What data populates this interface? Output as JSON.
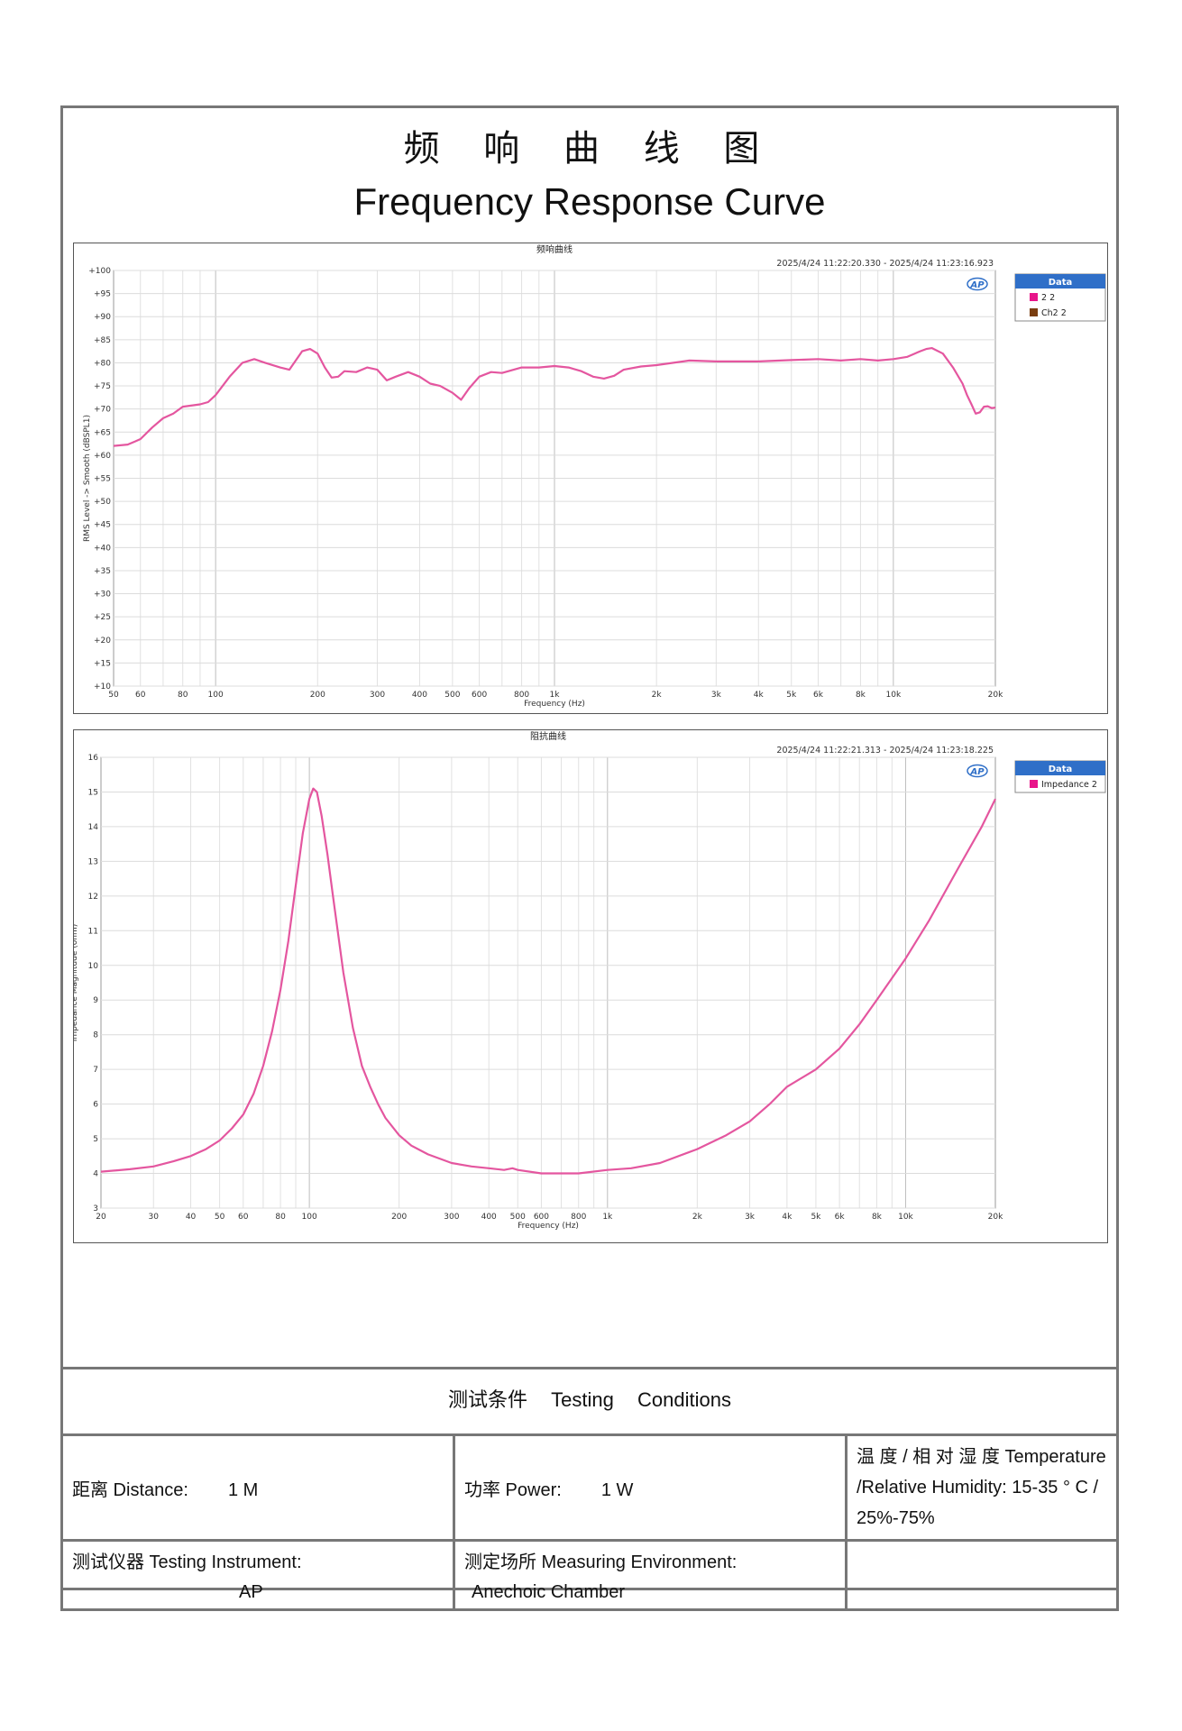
{
  "header": {
    "title_cn": "频 响 曲 线 图",
    "title_en": "Frequency Response Curve"
  },
  "colors": {
    "curve": "#e4569f",
    "legend_ch2": "#7a3e10",
    "legend_header": "#2f6fc8"
  },
  "chart_data": [
    {
      "type": "line",
      "title": "频响曲线",
      "timestamp": "2025/4/24 11:22:20.330 - 2025/4/24 11:23:16.923",
      "xlabel": "Frequency (Hz)",
      "ylabel": "RMS Level -> Smooth (dBSPL1)",
      "xscale": "log",
      "xlim": [
        50,
        20000
      ],
      "ylim": [
        10,
        100
      ],
      "yticks": [
        "+10",
        "+15",
        "+20",
        "+25",
        "+30",
        "+35",
        "+40",
        "+45",
        "+50",
        "+55",
        "+60",
        "+65",
        "+70",
        "+75",
        "+80",
        "+85",
        "+90",
        "+95",
        "+100"
      ],
      "xticks": [
        {
          "v": 50,
          "label": "50"
        },
        {
          "v": 60,
          "label": "60"
        },
        {
          "v": 80,
          "label": "80"
        },
        {
          "v": 100,
          "label": "100"
        },
        {
          "v": 200,
          "label": "200"
        },
        {
          "v": 300,
          "label": "300"
        },
        {
          "v": 400,
          "label": "400"
        },
        {
          "v": 500,
          "label": "500"
        },
        {
          "v": 600,
          "label": "600"
        },
        {
          "v": 800,
          "label": "800"
        },
        {
          "v": 1000,
          "label": "1k"
        },
        {
          "v": 2000,
          "label": "2k"
        },
        {
          "v": 3000,
          "label": "3k"
        },
        {
          "v": 4000,
          "label": "4k"
        },
        {
          "v": 5000,
          "label": "5k"
        },
        {
          "v": 6000,
          "label": "6k"
        },
        {
          "v": 8000,
          "label": "8k"
        },
        {
          "v": 10000,
          "label": "10k"
        },
        {
          "v": 20000,
          "label": "20k"
        }
      ],
      "legend": {
        "header": "Data",
        "items": [
          {
            "label": "2 2",
            "color": "#e8158a"
          },
          {
            "label": "Ch2 2",
            "color": "#7a3e10"
          }
        ],
        "position": "right"
      },
      "series": [
        {
          "name": "2 2",
          "points": [
            [
              50,
              62
            ],
            [
              55,
              62.3
            ],
            [
              58,
              63
            ],
            [
              60,
              63.5
            ],
            [
              65,
              66
            ],
            [
              70,
              68
            ],
            [
              75,
              69
            ],
            [
              80,
              70.5
            ],
            [
              90,
              71
            ],
            [
              95,
              71.5
            ],
            [
              100,
              73
            ],
            [
              110,
              77
            ],
            [
              120,
              80
            ],
            [
              130,
              80.8
            ],
            [
              140,
              80
            ],
            [
              155,
              79
            ],
            [
              165,
              78.5
            ],
            [
              180,
              82.5
            ],
            [
              190,
              83
            ],
            [
              200,
              82
            ],
            [
              210,
              79
            ],
            [
              220,
              76.8
            ],
            [
              230,
              77
            ],
            [
              240,
              78.2
            ],
            [
              260,
              78
            ],
            [
              280,
              79
            ],
            [
              300,
              78.5
            ],
            [
              320,
              76.2
            ],
            [
              340,
              77
            ],
            [
              370,
              78
            ],
            [
              400,
              77
            ],
            [
              430,
              75.5
            ],
            [
              460,
              75
            ],
            [
              500,
              73.5
            ],
            [
              530,
              72
            ],
            [
              560,
              74.5
            ],
            [
              600,
              77
            ],
            [
              650,
              78
            ],
            [
              700,
              77.8
            ],
            [
              800,
              79
            ],
            [
              900,
              79
            ],
            [
              1000,
              79.3
            ],
            [
              1100,
              79
            ],
            [
              1200,
              78.2
            ],
            [
              1300,
              77
            ],
            [
              1400,
              76.6
            ],
            [
              1500,
              77.2
            ],
            [
              1600,
              78.5
            ],
            [
              1800,
              79.2
            ],
            [
              2000,
              79.5
            ],
            [
              2500,
              80.5
            ],
            [
              3000,
              80.3
            ],
            [
              4000,
              80.3
            ],
            [
              5000,
              80.6
            ],
            [
              6000,
              80.8
            ],
            [
              7000,
              80.5
            ],
            [
              8000,
              80.8
            ],
            [
              9000,
              80.5
            ],
            [
              10000,
              80.8
            ],
            [
              11000,
              81.3
            ],
            [
              12000,
              82.5
            ],
            [
              12500,
              83
            ],
            [
              13000,
              83.2
            ],
            [
              14000,
              82
            ],
            [
              15000,
              79
            ],
            [
              16000,
              75.5
            ],
            [
              16500,
              73
            ],
            [
              17000,
              71
            ],
            [
              17500,
              69
            ],
            [
              18000,
              69.3
            ],
            [
              18500,
              70.5
            ],
            [
              19000,
              70.6
            ],
            [
              19500,
              70.2
            ],
            [
              20000,
              70.3
            ]
          ]
        }
      ]
    },
    {
      "type": "line",
      "title": "阻抗曲线",
      "timestamp": "2025/4/24 11:22:21.313 - 2025/4/24 11:23:18.225",
      "xlabel": "Frequency (Hz)",
      "ylabel": "Impedance Magnitude (ohm)",
      "xscale": "log",
      "xlim": [
        20,
        20000
      ],
      "ylim": [
        3,
        16
      ],
      "yticks": [
        "3",
        "4",
        "5",
        "6",
        "7",
        "8",
        "9",
        "10",
        "11",
        "12",
        "13",
        "14",
        "15",
        "16"
      ],
      "xticks": [
        {
          "v": 20,
          "label": "20"
        },
        {
          "v": 30,
          "label": "30"
        },
        {
          "v": 40,
          "label": "40"
        },
        {
          "v": 50,
          "label": "50"
        },
        {
          "v": 60,
          "label": "60"
        },
        {
          "v": 80,
          "label": "80"
        },
        {
          "v": 100,
          "label": "100"
        },
        {
          "v": 200,
          "label": "200"
        },
        {
          "v": 300,
          "label": "300"
        },
        {
          "v": 400,
          "label": "400"
        },
        {
          "v": 500,
          "label": "500"
        },
        {
          "v": 600,
          "label": "600"
        },
        {
          "v": 800,
          "label": "800"
        },
        {
          "v": 1000,
          "label": "1k"
        },
        {
          "v": 2000,
          "label": "2k"
        },
        {
          "v": 3000,
          "label": "3k"
        },
        {
          "v": 4000,
          "label": "4k"
        },
        {
          "v": 5000,
          "label": "5k"
        },
        {
          "v": 6000,
          "label": "6k"
        },
        {
          "v": 8000,
          "label": "8k"
        },
        {
          "v": 10000,
          "label": "10k"
        },
        {
          "v": 20000,
          "label": "20k"
        }
      ],
      "legend": {
        "header": "Data",
        "items": [
          {
            "label": "Impedance 2",
            "color": "#e8158a"
          }
        ],
        "position": "right"
      },
      "series": [
        {
          "name": "Impedance 2",
          "points": [
            [
              20,
              4.05
            ],
            [
              25,
              4.12
            ],
            [
              30,
              4.2
            ],
            [
              35,
              4.35
            ],
            [
              40,
              4.5
            ],
            [
              45,
              4.7
            ],
            [
              50,
              4.95
            ],
            [
              55,
              5.3
            ],
            [
              60,
              5.7
            ],
            [
              65,
              6.3
            ],
            [
              70,
              7.1
            ],
            [
              75,
              8.1
            ],
            [
              80,
              9.3
            ],
            [
              85,
              10.7
            ],
            [
              90,
              12.3
            ],
            [
              95,
              13.8
            ],
            [
              100,
              14.8
            ],
            [
              103,
              15.1
            ],
            [
              106,
              15.0
            ],
            [
              110,
              14.3
            ],
            [
              115,
              13.2
            ],
            [
              120,
              12
            ],
            [
              130,
              9.8
            ],
            [
              140,
              8.2
            ],
            [
              150,
              7.1
            ],
            [
              160,
              6.5
            ],
            [
              170,
              6
            ],
            [
              180,
              5.6
            ],
            [
              200,
              5.1
            ],
            [
              220,
              4.8
            ],
            [
              250,
              4.55
            ],
            [
              300,
              4.3
            ],
            [
              350,
              4.2
            ],
            [
              400,
              4.15
            ],
            [
              450,
              4.1
            ],
            [
              480,
              4.15
            ],
            [
              500,
              4.1
            ],
            [
              600,
              4.0
            ],
            [
              700,
              4.0
            ],
            [
              800,
              4.0
            ],
            [
              1000,
              4.1
            ],
            [
              1200,
              4.15
            ],
            [
              1500,
              4.3
            ],
            [
              2000,
              4.7
            ],
            [
              2500,
              5.1
            ],
            [
              3000,
              5.5
            ],
            [
              3500,
              6.0
            ],
            [
              4000,
              6.5
            ],
            [
              5000,
              7.0
            ],
            [
              6000,
              7.6
            ],
            [
              7000,
              8.3
            ],
            [
              8000,
              9.0
            ],
            [
              10000,
              10.2
            ],
            [
              12000,
              11.3
            ],
            [
              15000,
              12.8
            ],
            [
              18000,
              14.0
            ],
            [
              20000,
              14.8
            ]
          ]
        }
      ]
    }
  ],
  "conditions": {
    "title_cn": "测试条件",
    "title_en_1": "Testing",
    "title_en_2": "Conditions",
    "distance_label": "距离  Distance:",
    "distance_value": "1 M",
    "power_label": "功率  Power:",
    "power_value": "1 W",
    "temp_label_cn": "温 度 / 相 对 湿 度",
    "temp_label_en": "Temperature /Relative Humidity:",
    "temp_value": "15-35  ° C  / 25%-75%",
    "instrument_label": "测试仪器  Testing Instrument:",
    "instrument_value": "AP",
    "environment_label": "测定场所 Measuring Environment:",
    "environment_value": "Anechoic Chamber"
  }
}
